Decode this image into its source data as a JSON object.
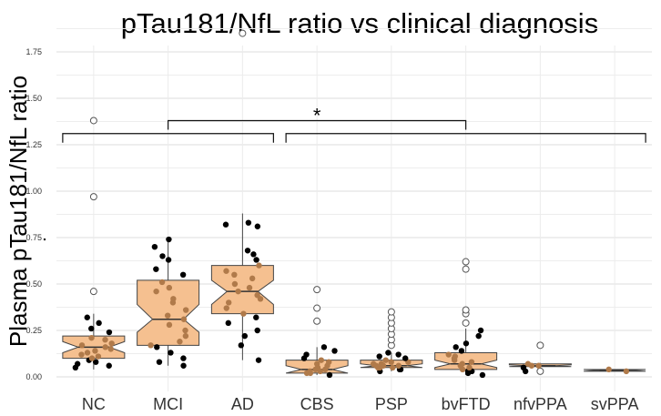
{
  "chart_data": {
    "type": "box",
    "title": "pTau181/NfL ratio vs clinical diagnosis",
    "xlabel": "",
    "ylabel": "Plasma pTau181/NfL ratio",
    "ylim": [
      -0.07,
      1.93
    ],
    "yticks": [
      0.0,
      0.25,
      0.5,
      0.75,
      1.0,
      1.25,
      1.5,
      1.75
    ],
    "ytick_labels": [
      "0.00",
      "0.25",
      "0.50",
      "0.75",
      "1.00",
      "1.25",
      "1.50",
      "1.75"
    ],
    "grid": "horizontal",
    "box_fill": "#f5c090",
    "box_stroke": "#444444",
    "point_color": "#000000",
    "overlay_point_color": "#b07a4a",
    "categories": [
      "NC",
      "MCI",
      "AD",
      "CBS",
      "PSP",
      "bvFTD",
      "nfvPPA",
      "svPPA"
    ],
    "boxes": [
      {
        "name": "NC",
        "q1": 0.1,
        "median": 0.16,
        "q3": 0.22,
        "notch_low": 0.13,
        "notch_high": 0.19,
        "whisker_low": 0.04,
        "whisker_high": 0.34,
        "outliers": [
          0.46,
          0.97,
          1.38
        ],
        "points": [
          0.05,
          0.06,
          0.07,
          0.08,
          0.09,
          0.1,
          0.11,
          0.12,
          0.13,
          0.14,
          0.15,
          0.16,
          0.17,
          0.18,
          0.2,
          0.21,
          0.24,
          0.26,
          0.29,
          0.32
        ]
      },
      {
        "name": "MCI",
        "q1": 0.17,
        "median": 0.31,
        "q3": 0.52,
        "notch_low": 0.24,
        "notch_high": 0.39,
        "whisker_low": 0.06,
        "whisker_high": 0.74,
        "outliers": [],
        "points": [
          0.06,
          0.08,
          0.1,
          0.13,
          0.16,
          0.17,
          0.19,
          0.22,
          0.25,
          0.28,
          0.31,
          0.33,
          0.36,
          0.4,
          0.42,
          0.46,
          0.48,
          0.51,
          0.55,
          0.58,
          0.63,
          0.65,
          0.7,
          0.74
        ]
      },
      {
        "name": "AD",
        "q1": 0.34,
        "median": 0.46,
        "q3": 0.6,
        "notch_low": 0.39,
        "notch_high": 0.52,
        "whisker_low": 0.09,
        "whisker_high": 0.88,
        "outliers": [
          1.85
        ],
        "points": [
          0.09,
          0.17,
          0.22,
          0.25,
          0.29,
          0.32,
          0.34,
          0.37,
          0.4,
          0.42,
          0.44,
          0.46,
          0.48,
          0.5,
          0.53,
          0.55,
          0.57,
          0.6,
          0.63,
          0.66,
          0.68,
          0.81,
          0.82,
          0.83
        ]
      },
      {
        "name": "CBS",
        "q1": 0.02,
        "median": 0.04,
        "q3": 0.09,
        "notch_low": 0.02,
        "notch_high": 0.06,
        "whisker_low": 0.01,
        "whisker_high": 0.16,
        "outliers": [
          0.3,
          0.37,
          0.47
        ],
        "points": [
          0.01,
          0.02,
          0.02,
          0.03,
          0.03,
          0.04,
          0.04,
          0.05,
          0.06,
          0.07,
          0.08,
          0.09,
          0.1,
          0.12,
          0.14,
          0.16
        ]
      },
      {
        "name": "PSP",
        "q1": 0.05,
        "median": 0.06,
        "q3": 0.09,
        "notch_low": 0.05,
        "notch_high": 0.07,
        "whisker_low": 0.03,
        "whisker_high": 0.13,
        "outliers": [
          0.17,
          0.2,
          0.23,
          0.26,
          0.29,
          0.32,
          0.35
        ],
        "points": [
          0.03,
          0.04,
          0.04,
          0.05,
          0.05,
          0.05,
          0.06,
          0.06,
          0.06,
          0.07,
          0.07,
          0.08,
          0.08,
          0.09,
          0.1,
          0.11,
          0.12,
          0.13
        ]
      },
      {
        "name": "bvFTD",
        "q1": 0.04,
        "median": 0.07,
        "q3": 0.13,
        "notch_low": 0.05,
        "notch_high": 0.09,
        "whisker_low": 0.01,
        "whisker_high": 0.26,
        "outliers": [
          0.29,
          0.34,
          0.36,
          0.58,
          0.62
        ],
        "points": [
          0.01,
          0.02,
          0.03,
          0.03,
          0.04,
          0.05,
          0.06,
          0.07,
          0.08,
          0.09,
          0.1,
          0.11,
          0.12,
          0.14,
          0.16,
          0.18,
          0.22,
          0.25
        ]
      },
      {
        "name": "nfvPPA",
        "q1": 0.055,
        "median": 0.06,
        "q3": 0.07,
        "notch_low": 0.055,
        "notch_high": 0.065,
        "whisker_low": 0.03,
        "whisker_high": 0.075,
        "outliers": [
          0.03,
          0.17
        ],
        "points": [
          0.03,
          0.05,
          0.06,
          0.06,
          0.07
        ]
      },
      {
        "name": "svPPA",
        "q1": 0.03,
        "median": 0.035,
        "q3": 0.04,
        "notch_low": 0.03,
        "notch_high": 0.04,
        "whisker_low": 0.03,
        "whisker_high": 0.04,
        "outliers": [],
        "points": [
          0.03,
          0.04
        ]
      }
    ],
    "annotations": [
      {
        "type": "bracket",
        "from": "NC",
        "to": "AD",
        "y": 1.31,
        "label": ""
      },
      {
        "type": "bracket",
        "from": "CBS",
        "to": "svPPA",
        "y": 1.31,
        "label": ""
      },
      {
        "type": "bracket",
        "from_mid": [
          "NC",
          "AD"
        ],
        "to_mid": [
          "CBS",
          "svPPA"
        ],
        "y": 1.38,
        "label": "*"
      }
    ],
    "stray_mark_y": 0.74
  }
}
